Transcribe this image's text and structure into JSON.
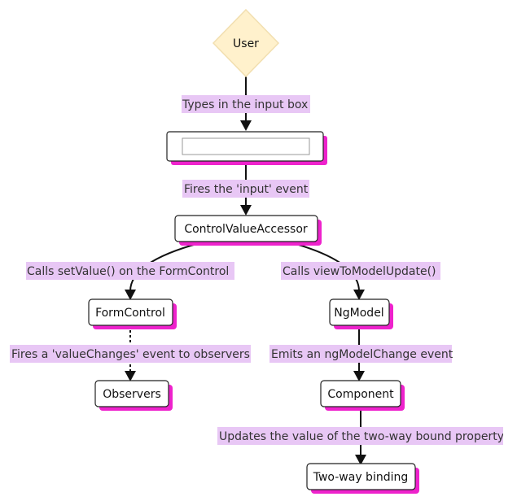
{
  "colors": {
    "decision_fill": "#fff1cc",
    "decision_stroke": "#f2dfb0",
    "node_fill": "#ffffff",
    "node_stroke": "#222222",
    "shadow": "#ee22cc",
    "edge_label_bg": "#e8c7f5",
    "edge": "#111111"
  },
  "nodes": {
    "user": "User",
    "input_box": "",
    "cva": "ControlValueAccessor",
    "form_control": "FormControl",
    "observers": "Observers",
    "ng_model": "NgModel",
    "component": "Component",
    "two_way": "Two-way binding"
  },
  "edges": {
    "types": "Types in the input box",
    "fires_input": "Fires the 'input' event",
    "calls_set_value": "Calls setValue() on the FormControl",
    "calls_view_to_model": "Calls viewToModelUpdate()",
    "fires_value_changes": "Fires a 'valueChanges' event to observers",
    "emits_change": "Emits an ngModelChange event",
    "updates_value": "Updates the value of the two-way bound property"
  }
}
